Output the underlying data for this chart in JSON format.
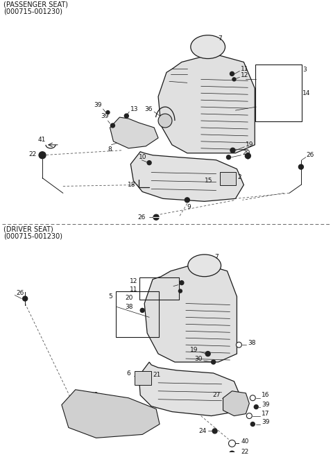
{
  "bg_color": "#ffffff",
  "line_color": "#1a1a1a",
  "text_color": "#111111",
  "section1_label": "(PASSENGER SEAT)",
  "section1_code": "(000715-001230)",
  "section2_label": "(DRIVER SEAT)",
  "section2_code": "(000715-001230)",
  "figsize": [
    4.8,
    6.56
  ],
  "dpi": 100
}
